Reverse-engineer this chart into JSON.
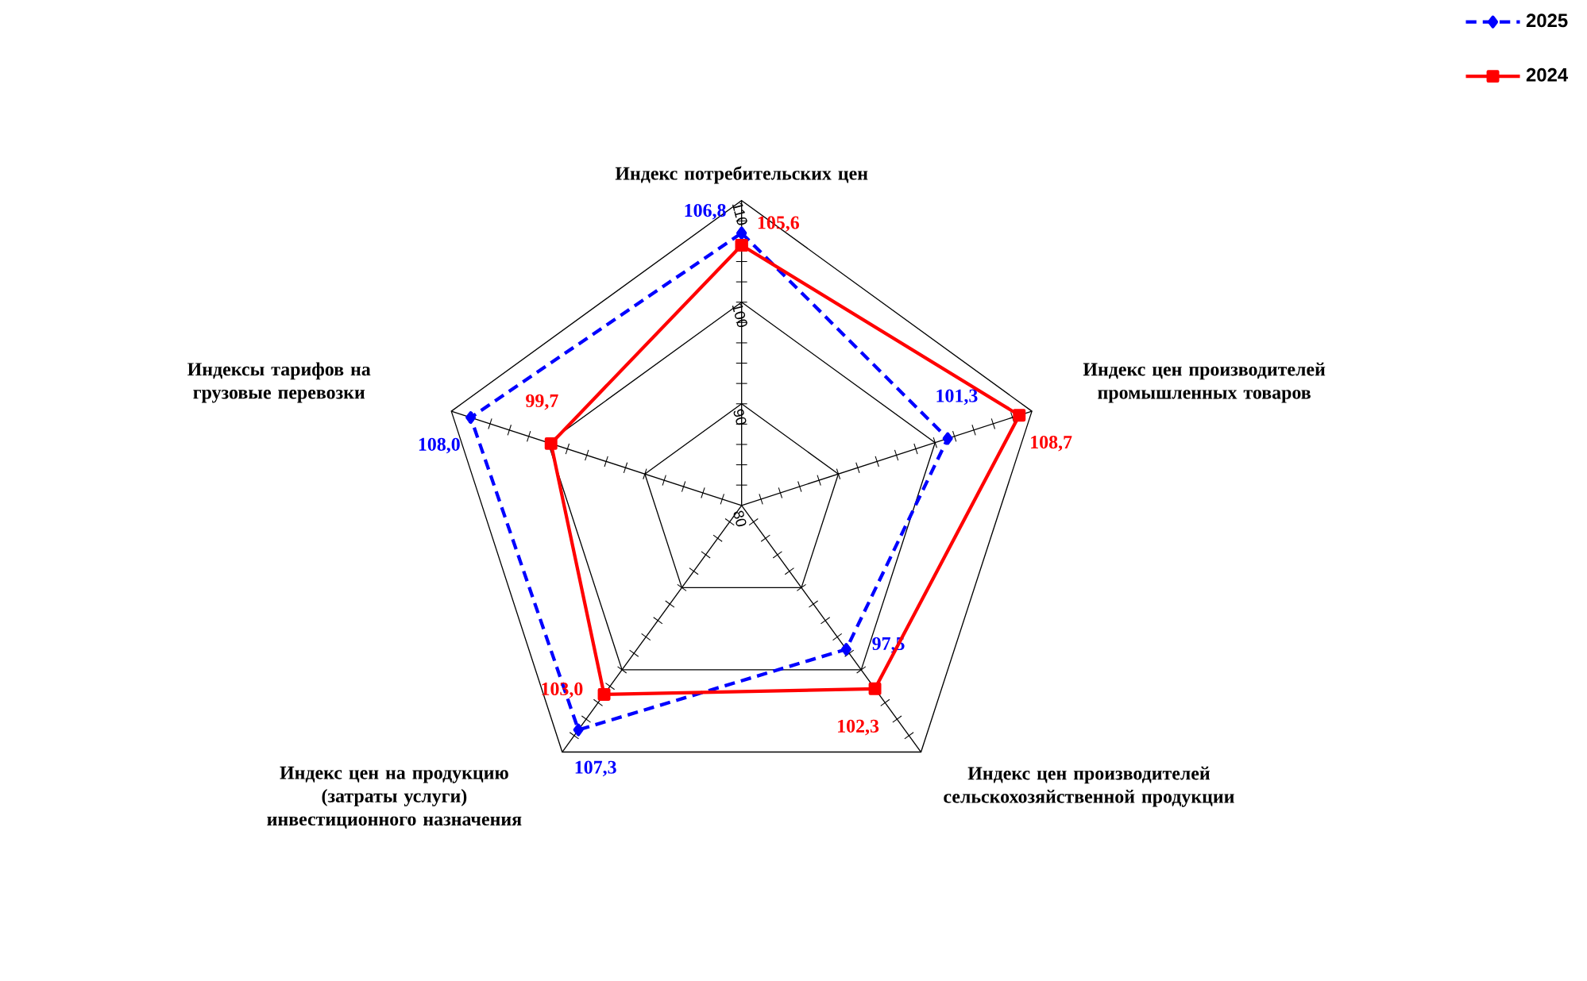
{
  "chart_data": {
    "type": "radar",
    "categories": [
      "Индекс потребительских цен",
      "Индекс цен производителей промышленных товаров",
      "Индекс цен производителей сельскохозяйственной продукции",
      "Индекс цен на продукцию (затраты услуги) инвестиционного назначения",
      "Индексы тарифов на грузовые перевозки"
    ],
    "ylim": [
      80,
      110
    ],
    "yticks": [
      80,
      90,
      100,
      110
    ],
    "grid": true,
    "legend": "top right",
    "series": [
      {
        "name": "2025",
        "color": "#0000ff",
        "line_style": "dashed",
        "marker": "diamond",
        "values": [
          106.8,
          101.3,
          97.5,
          107.3,
          108.0
        ],
        "value_labels": [
          "106,8",
          "101,3",
          "97,5",
          "107,3",
          "108,0"
        ]
      },
      {
        "name": "2024",
        "color": "#ff0000",
        "line_style": "solid",
        "marker": "square",
        "values": [
          105.6,
          108.7,
          102.3,
          103.0,
          99.7
        ],
        "value_labels": [
          "105,6",
          "108,7",
          "102,3",
          "103,0",
          "99,7"
        ]
      }
    ]
  }
}
